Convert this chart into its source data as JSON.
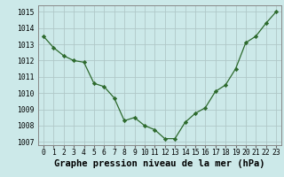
{
  "x": [
    0,
    1,
    2,
    3,
    4,
    5,
    6,
    7,
    8,
    9,
    10,
    11,
    12,
    13,
    14,
    15,
    16,
    17,
    18,
    19,
    20,
    21,
    22,
    23
  ],
  "y": [
    1013.5,
    1012.8,
    1012.3,
    1012.0,
    1011.9,
    1010.6,
    1010.4,
    1009.7,
    1008.3,
    1008.5,
    1008.0,
    1007.75,
    1007.2,
    1007.2,
    1008.2,
    1008.75,
    1009.1,
    1010.1,
    1010.5,
    1011.5,
    1013.1,
    1013.5,
    1014.3,
    1015.0
  ],
  "ylim": [
    1006.8,
    1015.4
  ],
  "xlim": [
    -0.5,
    23.5
  ],
  "yticks": [
    1007,
    1008,
    1009,
    1010,
    1011,
    1012,
    1013,
    1014,
    1015
  ],
  "xticks": [
    0,
    1,
    2,
    3,
    4,
    5,
    6,
    7,
    8,
    9,
    10,
    11,
    12,
    13,
    14,
    15,
    16,
    17,
    18,
    19,
    20,
    21,
    22,
    23
  ],
  "xlabel": "Graphe pression niveau de la mer (hPa)",
  "line_color": "#2d6a2d",
  "marker": "D",
  "marker_size": 2.2,
  "background_color": "#cce9e9",
  "grid_color": "#b0c8c8",
  "tick_fontsize": 5.8,
  "xlabel_fontsize": 7.5
}
